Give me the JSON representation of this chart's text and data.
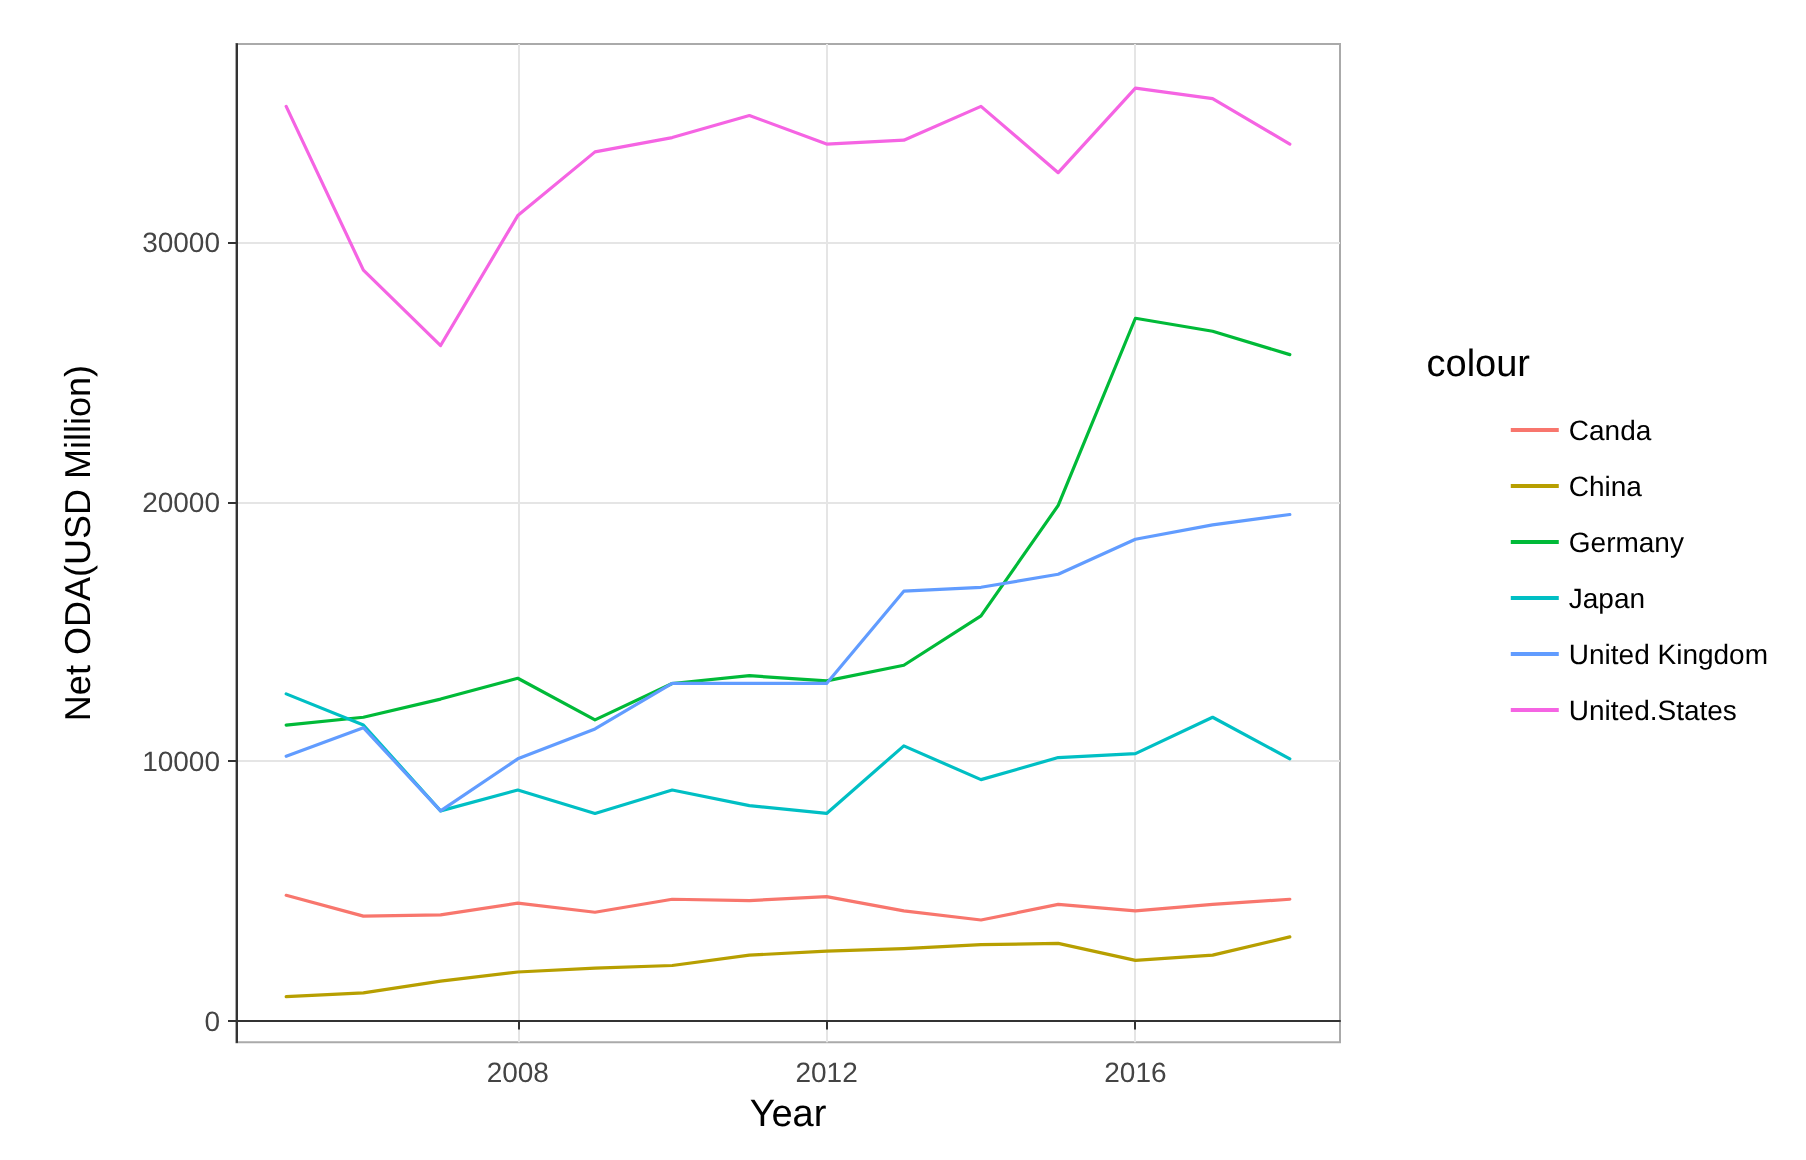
{
  "chart_data": {
    "type": "line",
    "xlabel": "Year",
    "ylabel": "Net ODA(USD Million)",
    "legend_title": "colour",
    "legend": "right",
    "grid": true,
    "marker": "none",
    "line_style": "solid",
    "x": [
      2005,
      2006,
      2007,
      2008,
      2009,
      2010,
      2011,
      2012,
      2013,
      2014,
      2015,
      2016,
      2017,
      2018
    ],
    "xlim": [
      2004.35,
      2018.65
    ],
    "xticks": [
      2008,
      2012,
      2016
    ],
    "ylim": [
      -800,
      37600
    ],
    "yticks": [
      0,
      10000,
      20000,
      30000
    ],
    "series": [
      {
        "name": "Canda",
        "color": "#f8766d",
        "values": [
          4850,
          4050,
          4100,
          4550,
          4200,
          4700,
          4650,
          4800,
          4250,
          3900,
          4500,
          4250,
          4500,
          4700
        ]
      },
      {
        "name": "China",
        "color": "#b79f00",
        "values": [
          950,
          1100,
          1550,
          1900,
          2050,
          2150,
          2550,
          2700,
          2800,
          2950,
          3000,
          2350,
          2550,
          3250
        ]
      },
      {
        "name": "Germany",
        "color": "#00ba38",
        "values": [
          11400,
          11700,
          12400,
          13200,
          11600,
          13000,
          13300,
          13100,
          13700,
          15600,
          19850,
          27050,
          26550,
          25650
        ]
      },
      {
        "name": "Japan",
        "color": "#00bfc4",
        "values": [
          12600,
          11400,
          8100,
          8900,
          8000,
          8900,
          8300,
          8000,
          10600,
          9300,
          10150,
          10300,
          11700,
          10100
        ]
      },
      {
        "name": "United Kingdom",
        "color": "#619cff",
        "values": [
          10200,
          11300,
          8100,
          10100,
          11250,
          13000,
          13000,
          13000,
          16550,
          16700,
          17200,
          18550,
          19100,
          19500
        ]
      },
      {
        "name": "United.States",
        "color": "#f564e3",
        "values": [
          35200,
          28900,
          26000,
          31000,
          33450,
          34000,
          34850,
          33750,
          33900,
          35200,
          32650,
          35900,
          35500,
          33750
        ]
      }
    ]
  }
}
